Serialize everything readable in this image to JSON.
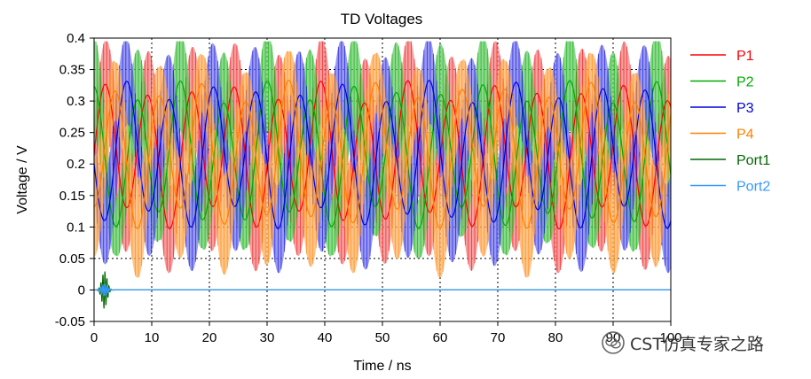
{
  "chart_data": {
    "type": "line",
    "title": "TD Voltages",
    "xlabel": "Time / ns",
    "ylabel": "Voltage / V",
    "xlim": [
      0,
      100
    ],
    "ylim": [
      -0.05,
      0.4
    ],
    "x_ticks": [
      "0",
      "10",
      "20",
      "30",
      "40",
      "50",
      "60",
      "70",
      "80",
      "90",
      "100"
    ],
    "y_ticks": [
      "-0.05",
      "0",
      "0.05",
      "0.1",
      "0.15",
      "0.2",
      "0.25",
      "0.3",
      "0.35",
      "0.4"
    ],
    "grid": true,
    "legend_position": "right",
    "series": [
      {
        "name": "P1",
        "color": "#ff0000",
        "fill_color": "#f08080",
        "baseline": 0.215,
        "envelope_amplitude": 0.1,
        "envelope_period_ns": 7.5,
        "phase": 0.0
      },
      {
        "name": "P2",
        "color": "#00aa00",
        "fill_color": "#66cc66",
        "baseline": 0.215,
        "envelope_amplitude": 0.1,
        "envelope_period_ns": 7.5,
        "phase": 1.57
      },
      {
        "name": "P3",
        "color": "#0000dd",
        "fill_color": "#7777ee",
        "baseline": 0.215,
        "envelope_amplitude": 0.1,
        "envelope_period_ns": 7.5,
        "phase": 3.14
      },
      {
        "name": "P4",
        "color": "#ff8000",
        "fill_color": "#ffb060",
        "baseline": 0.215,
        "envelope_amplitude": 0.1,
        "envelope_period_ns": 7.5,
        "phase": 4.71
      },
      {
        "name": "Port1",
        "color": "#006600",
        "burst_center_ns": 1.8,
        "burst_amplitude": 0.03
      },
      {
        "name": "Port2",
        "color": "#3399ff",
        "burst_center_ns": 1.8,
        "burst_amplitude": 0.01
      }
    ]
  },
  "watermark": {
    "text": "CST仿真专家之路",
    "icon": "wechat-icon"
  }
}
